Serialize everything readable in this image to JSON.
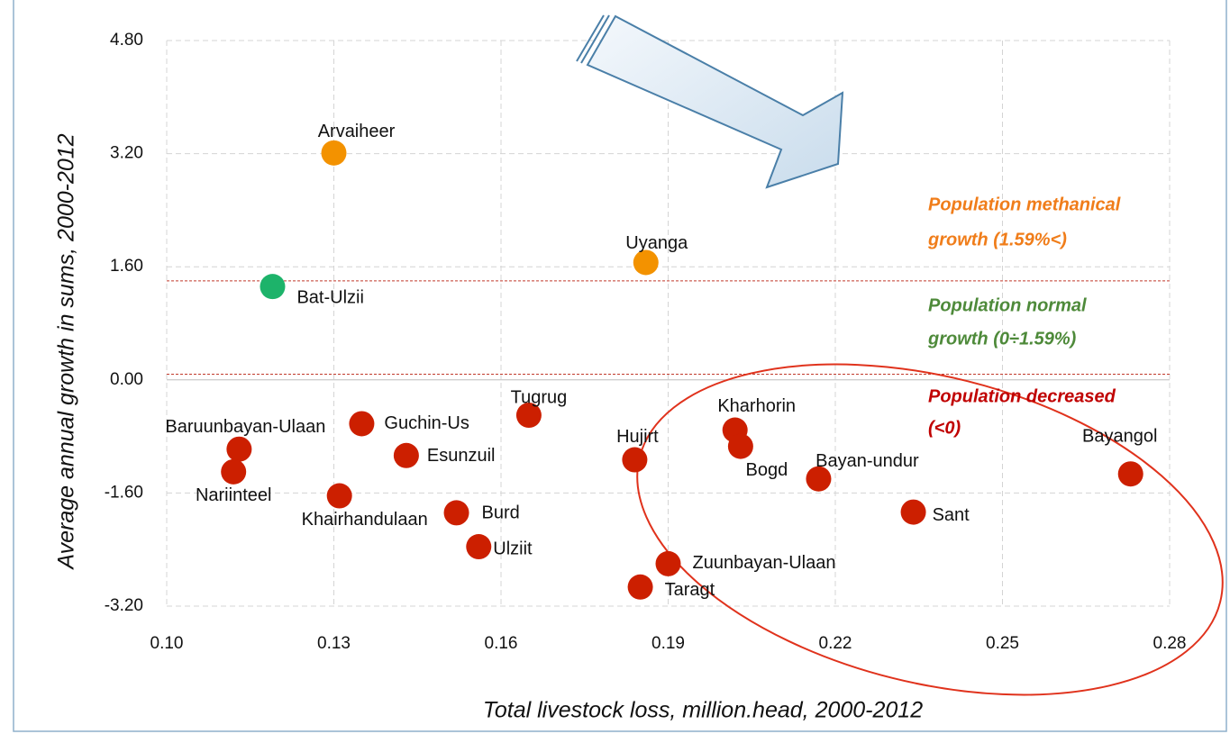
{
  "chart_data": {
    "type": "scatter",
    "xlabel": "Total livestock loss, million.head, 2000-2012",
    "ylabel": "Average annual growth in sums, 2000-2012",
    "xlim": [
      0.1,
      0.28
    ],
    "ylim": [
      -3.2,
      4.8
    ],
    "xticks": [
      {
        "value": 0.1,
        "label": "0.10"
      },
      0.13,
      0.16,
      0.19,
      0.22,
      0.25,
      0.28
    ],
    "yticks": [
      {
        "value": -3.2,
        "label": "-3.20"
      },
      {
        "value": -1.6,
        "label": "-1.60"
      },
      {
        "value": 0,
        "label": "0.00"
      },
      {
        "value": 1.6,
        "label": "1.60"
      },
      {
        "value": 3.2,
        "label": "3.20"
      },
      {
        "value": 4.8,
        "label": "4.80"
      }
    ],
    "grid": true,
    "labels": [
      "Arvaiheer",
      "Uyanga",
      "Bat-Ulzii",
      "Baruunbayan-Ulaan",
      "Nariinteel",
      "Guchin-Us",
      "Esunzuil",
      "Khairhandulaan",
      "Tugrug",
      "Burd",
      "Ulziit",
      "Hujirt",
      "Taragt",
      "Zuunbayan-Ulaan",
      "Kharhorin",
      "Bogd",
      "Bayan-undur",
      "Sant",
      "Bayangol"
    ],
    "x": [
      0.13,
      0.186,
      0.119,
      0.113,
      0.112,
      0.135,
      0.143,
      0.131,
      0.165,
      0.152,
      0.156,
      0.184,
      0.185,
      0.19,
      0.202,
      0.203,
      0.217,
      0.234,
      0.273
    ],
    "y": [
      3.21,
      1.66,
      1.32,
      -0.98,
      -1.3,
      -0.62,
      -1.07,
      -1.64,
      -0.5,
      -1.88,
      -2.36,
      -1.13,
      -2.93,
      -2.6,
      -0.71,
      -0.94,
      -1.4,
      -1.87,
      -1.33
    ],
    "colors": [
      "#f39200",
      "#f39200",
      "#1db36a",
      "#cc1f00",
      "#cc1f00",
      "#cc1f00",
      "#cc1f00",
      "#cc1f00",
      "#cc1f00",
      "#cc1f00",
      "#cc1f00",
      "#cc1f00",
      "#cc1f00",
      "#cc1f00",
      "#cc1f00",
      "#cc1f00",
      "#cc1f00",
      "#cc1f00",
      "#cc1f00"
    ],
    "hlines": [
      {
        "value": 1.4,
        "color": "#c0392b"
      },
      {
        "value": 0.08,
        "color": "#c0392b"
      }
    ],
    "annotations": [
      {
        "text": [
          "Population methanical",
          "growth (1.59%<)"
        ],
        "color": "#f07d1a"
      },
      {
        "text": [
          "Population normal",
          "growth (0÷1.59%)"
        ],
        "color": "#4e8a3a"
      },
      {
        "text": [
          "Population decreased",
          "(<0)"
        ],
        "color": "#c00000"
      }
    ]
  }
}
